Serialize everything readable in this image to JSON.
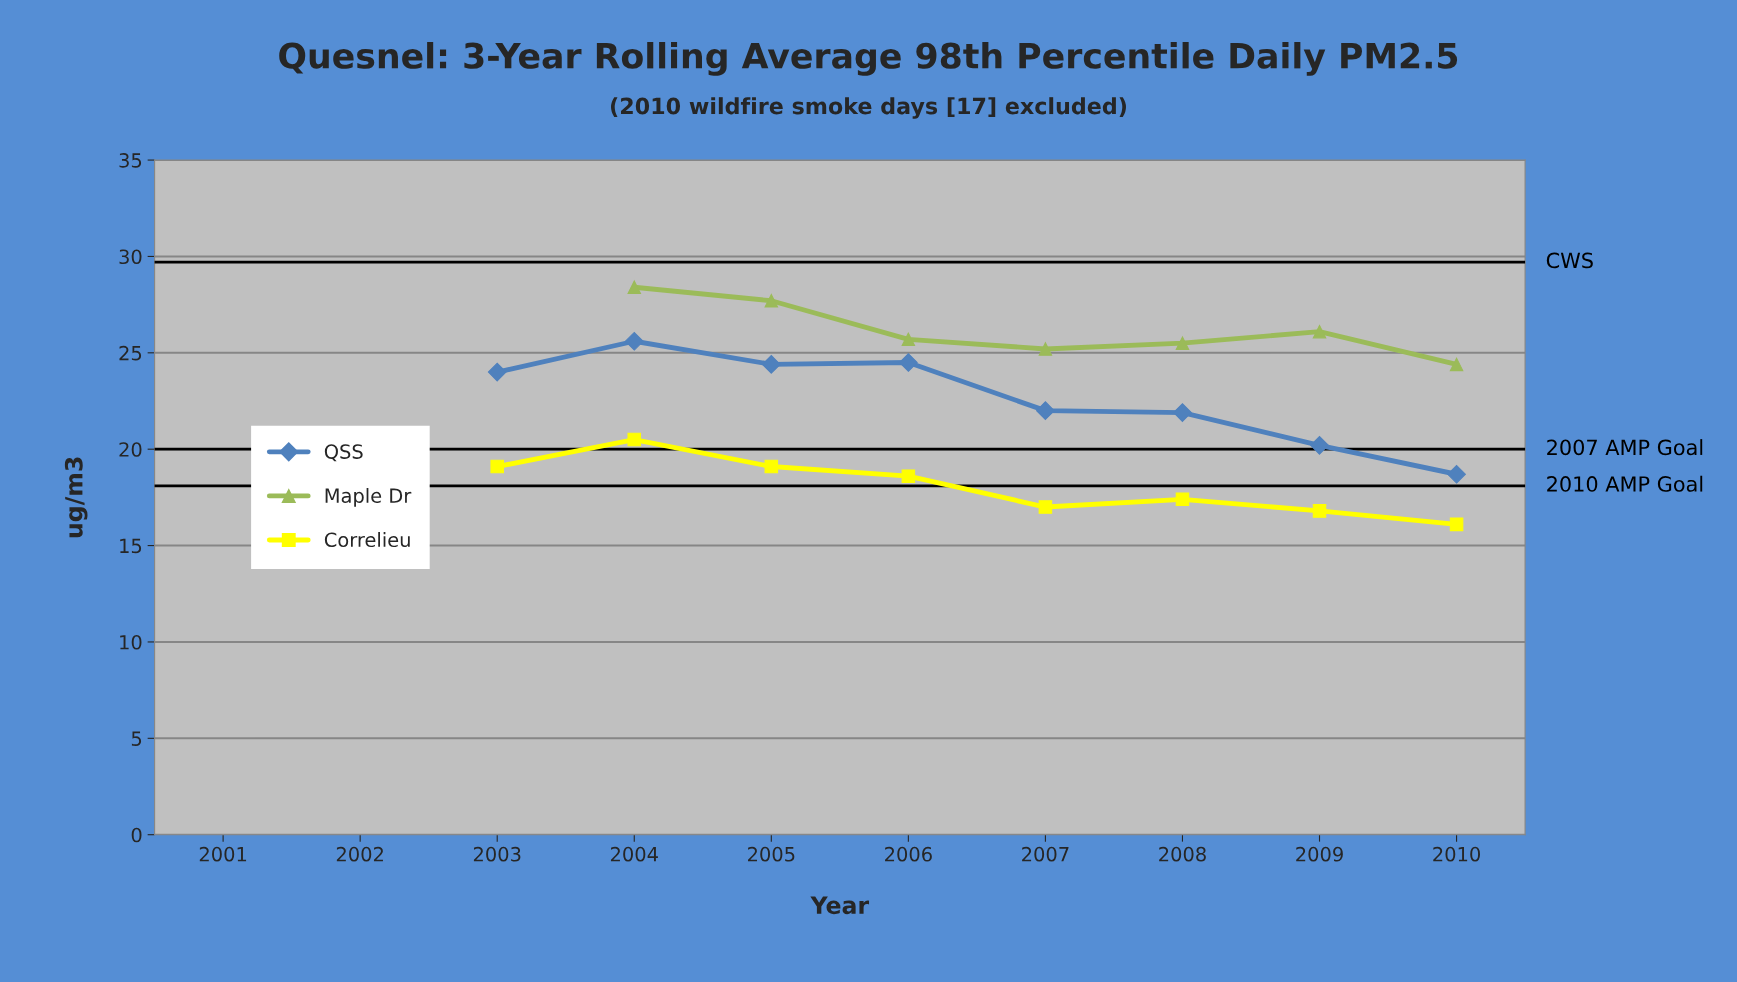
{
  "chart_data": {
    "type": "line",
    "title": "Quesnel: 3-Year Rolling Average 98th Percentile Daily PM2.5",
    "subtitle": "(2010 wildfire smoke days [17] excluded)",
    "xlabel": "Year",
    "ylabel": "ug/m3",
    "categories": [
      "2001",
      "2002",
      "2003",
      "2004",
      "2005",
      "2006",
      "2007",
      "2008",
      "2009",
      "2010"
    ],
    "series": [
      {
        "name": "QSS",
        "color": "#4f81bd",
        "marker": "diamond",
        "values": [
          null,
          null,
          24.0,
          25.6,
          24.4,
          24.5,
          22.0,
          21.9,
          20.2,
          18.7
        ]
      },
      {
        "name": "Maple Dr",
        "color": "#9bbb59",
        "marker": "triangle",
        "values": [
          null,
          null,
          null,
          28.4,
          27.7,
          25.7,
          25.2,
          25.5,
          26.1,
          24.4
        ]
      },
      {
        "name": "Correlieu",
        "color": "#ffff00",
        "marker": "square",
        "values": [
          null,
          null,
          19.1,
          20.5,
          19.1,
          18.6,
          17.0,
          17.4,
          16.8,
          16.1
        ]
      }
    ],
    "ylim": [
      0,
      35
    ],
    "yticks": [
      0,
      5,
      10,
      15,
      20,
      25,
      30,
      35
    ],
    "grid": "y",
    "legend": "left",
    "ref_lines": [
      {
        "axis": "y",
        "value": 29.7,
        "label": "CWS",
        "color": "#000000"
      },
      {
        "axis": "y",
        "value": 20.0,
        "label": "2007 AMP Goal",
        "color": "#000000"
      },
      {
        "axis": "y",
        "value": 18.1,
        "label": "2010 AMP Goal",
        "color": "#000000"
      }
    ]
  }
}
